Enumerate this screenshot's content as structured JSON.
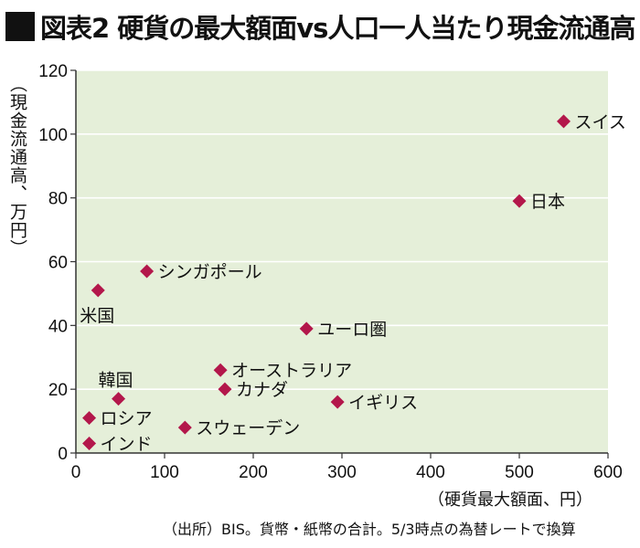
{
  "title": "図表2 硬貨の最大額面vs人口一人当たり現金流通高",
  "colors": {
    "plot_bg": "#e5efd9",
    "marker": "#b3174b",
    "grid": "#ffffff",
    "axis": "#333333"
  },
  "chart_data": {
    "type": "scatter",
    "title": "図表2 硬貨の最大額面vs人口一人当たり現金流通高",
    "xlabel": "（硬貨最大額面、円）",
    "ylabel": "（現金流通高、万円）",
    "xlim": [
      0,
      600
    ],
    "ylim": [
      0,
      120
    ],
    "xticks": [
      0,
      100,
      200,
      300,
      400,
      500,
      600
    ],
    "yticks": [
      0,
      20,
      40,
      60,
      80,
      100,
      120
    ],
    "grid": "horizontal",
    "points": [
      {
        "label": "スイス",
        "x": 550,
        "y": 104
      },
      {
        "label": "日本",
        "x": 500,
        "y": 79
      },
      {
        "label": "シンガポール",
        "x": 80,
        "y": 57
      },
      {
        "label": "米国",
        "x": 25,
        "y": 51
      },
      {
        "label": "ユーロ圏",
        "x": 260,
        "y": 39
      },
      {
        "label": "オーストラリア",
        "x": 163,
        "y": 26
      },
      {
        "label": "カナダ",
        "x": 168,
        "y": 20
      },
      {
        "label": "韓国",
        "x": 48,
        "y": 17
      },
      {
        "label": "イギリス",
        "x": 295,
        "y": 16
      },
      {
        "label": "ロシア",
        "x": 15,
        "y": 11
      },
      {
        "label": "スウェーデン",
        "x": 123,
        "y": 8
      },
      {
        "label": "インド",
        "x": 15,
        "y": 3
      }
    ]
  },
  "source": "（出所）BIS。貨幣・紙幣の合計。5/3時点の為替レートで換算"
}
